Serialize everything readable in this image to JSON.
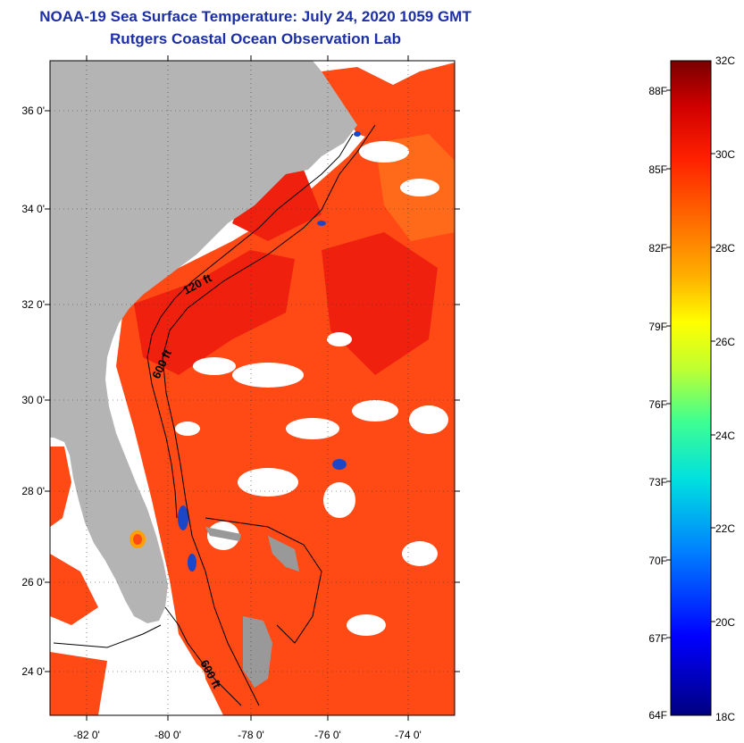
{
  "title": {
    "line1": "NOAA-19 Sea Surface Temperature:  July 24, 2020 1059 GMT",
    "line2": "Rutgers Coastal Ocean Observation Lab"
  },
  "map": {
    "lat_labels": [
      "36 0'",
      "34 0'",
      "32 0'",
      "30 0'",
      "28 0'",
      "26 0'",
      "24 0'"
    ],
    "lon_labels": [
      "-82 0'",
      "-80 0'",
      "-78 0'",
      "-76 0'",
      "-74 0'"
    ],
    "contour_labels": {
      "shelf_120": "120 ft",
      "slope_600": "600 ft",
      "south_600": "600 ft"
    },
    "colors": {
      "land": "#b4b4b4",
      "cloud": "#ffffff",
      "warm": "#ff4a16",
      "hot": "#f0200f",
      "cool": "#1b46c8"
    }
  },
  "colorbar": {
    "celsius_labels": [
      "32C",
      "30C",
      "28C",
      "26C",
      "24C",
      "22C",
      "20C",
      "18C"
    ],
    "fahrenheit_labels": [
      "88F",
      "85F",
      "82F",
      "79F",
      "76F",
      "73F",
      "70F",
      "67F",
      "64F"
    ],
    "range_c": [
      18,
      32
    ]
  }
}
